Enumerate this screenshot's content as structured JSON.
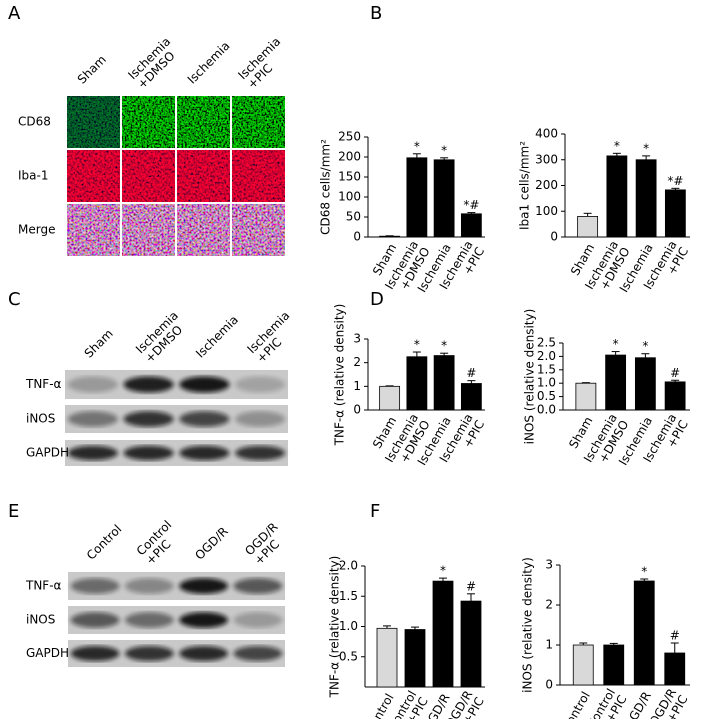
{
  "panel_labels": [
    "A",
    "B",
    "C",
    "D",
    "E",
    "F"
  ],
  "panel_a": {
    "columns": [
      "Sham",
      "Ischemia\n+DMSO",
      "Ischemia",
      "Ischemia\n+PIC"
    ],
    "rows": [
      "CD68",
      "Iba-1",
      "Merge"
    ]
  },
  "panel_c": {
    "lanes": [
      "Sham",
      "Ischemia\n+DMSO",
      "Ischemia",
      "Ischemia\n+PIC"
    ],
    "bands": [
      "TNF-α",
      "iNOS",
      "GAPDH"
    ]
  },
  "panel_e": {
    "lanes": [
      "Control",
      "Control\n+PIC",
      "OGD/R",
      "OGD/R\n+PIC"
    ],
    "bands": [
      "TNF-α",
      "iNOS",
      "GAPDH"
    ]
  },
  "chart_data": [
    {
      "type": "bar",
      "ylabel": "CD68 cells/mm²",
      "categories": [
        "Sham",
        "Ischemia\n+DMSO",
        "Ischemia",
        "Ischemia\n+PIC"
      ],
      "values": [
        2,
        198,
        193,
        58
      ],
      "errors": [
        1,
        10,
        5,
        3
      ],
      "colors": [
        "#d9d9d9",
        "#000000",
        "#000000",
        "#000000"
      ],
      "markers": [
        null,
        "*",
        "*",
        "*#"
      ],
      "ylim": [
        0,
        250
      ],
      "yticks": [
        0,
        50,
        100,
        150,
        200,
        250
      ]
    },
    {
      "type": "bar",
      "ylabel": "Iba1 cells/mm²",
      "categories": [
        "Sham",
        "Ischemia\n+DMSO",
        "Ischemia",
        "Ischemia\n+PIC"
      ],
      "values": [
        80,
        315,
        300,
        183
      ],
      "errors": [
        12,
        10,
        15,
        6
      ],
      "colors": [
        "#d9d9d9",
        "#000000",
        "#000000",
        "#000000"
      ],
      "markers": [
        null,
        "*",
        "*",
        "*#"
      ],
      "ylim": [
        0,
        400
      ],
      "yticks": [
        0,
        100,
        200,
        300,
        400
      ]
    },
    {
      "type": "bar",
      "ylabel": "TNF-α (relative density)",
      "categories": [
        "Sham",
        "Ischemia\n+DMSO",
        "Ischemia",
        "Ischemia\n+PIC"
      ],
      "values": [
        1.0,
        2.25,
        2.3,
        1.12
      ],
      "errors": [
        0.02,
        0.2,
        0.1,
        0.12
      ],
      "colors": [
        "#d9d9d9",
        "#000000",
        "#000000",
        "#000000"
      ],
      "markers": [
        null,
        "*",
        "*",
        "#"
      ],
      "ylim": [
        0,
        3
      ],
      "yticks": [
        0,
        1,
        2,
        3
      ]
    },
    {
      "type": "bar",
      "ylabel": "iNOS (relative density)",
      "categories": [
        "Sham",
        "Ischemia\n+DMSO",
        "Ischemia",
        "Ischemia\n+PIC"
      ],
      "values": [
        1.0,
        2.05,
        1.95,
        1.05
      ],
      "errors": [
        0.02,
        0.13,
        0.15,
        0.06
      ],
      "colors": [
        "#d9d9d9",
        "#000000",
        "#000000",
        "#000000"
      ],
      "markers": [
        null,
        "*",
        "*",
        "#"
      ],
      "ylim": [
        0,
        2.5
      ],
      "yticks": [
        {
          "value": 0,
          "label": "0.0"
        },
        0.5,
        {
          "value": 1,
          "label": "1.0"
        },
        1.5,
        {
          "value": 2,
          "label": "2.0"
        },
        2.5
      ]
    },
    {
      "type": "bar",
      "ylabel": "TNF-α (relative density)",
      "categories": [
        "Control",
        "Control\n+PIC",
        "OGD/R",
        "OGD/R\n+PIC"
      ],
      "values": [
        0.97,
        0.95,
        1.75,
        1.42
      ],
      "errors": [
        0.04,
        0.04,
        0.05,
        0.12
      ],
      "colors": [
        "#d9d9d9",
        "#000000",
        "#000000",
        "#000000"
      ],
      "markers": [
        null,
        null,
        "*",
        "#"
      ],
      "ylim": [
        0,
        2
      ],
      "yticks": [
        0.5,
        {
          "value": 1,
          "label": "1.0"
        },
        1.5,
        {
          "value": 2,
          "label": "2.0"
        }
      ]
    },
    {
      "type": "bar",
      "ylabel": "iNOS (relative density)",
      "categories": [
        "Control",
        "Control\n+PIC",
        "OGD/R",
        "OGD/R\n+PIC"
      ],
      "values": [
        1.0,
        1.0,
        2.6,
        0.8
      ],
      "errors": [
        0.05,
        0.04,
        0.05,
        0.25
      ],
      "colors": [
        "#d9d9d9",
        "#000000",
        "#000000",
        "#000000"
      ],
      "markers": [
        null,
        null,
        "*",
        "#"
      ],
      "ylim": [
        0,
        3
      ],
      "yticks": [
        0,
        1,
        2,
        3
      ]
    }
  ]
}
